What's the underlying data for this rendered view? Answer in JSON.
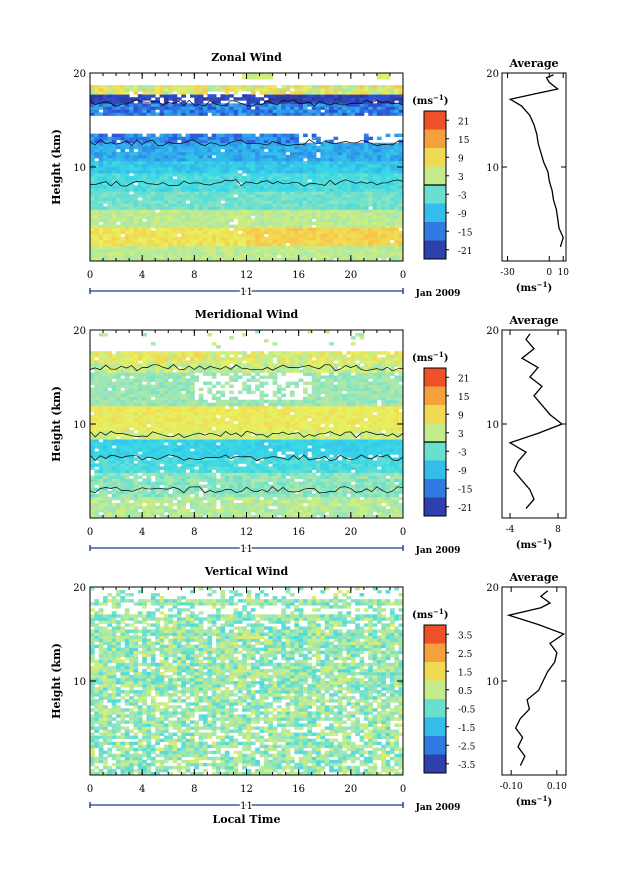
{
  "chart_data": [
    {
      "type": "heatmap",
      "title": "Zonal Wind",
      "ylabel": "Height (km)",
      "units_label": "(ms",
      "units_exp": "−1",
      "x_ticks": [
        "0",
        "4",
        "8",
        "12",
        "16",
        "20",
        "0"
      ],
      "y_ticks": [
        "20",
        "10"
      ],
      "ylim": [
        0,
        20
      ],
      "xlim": [
        0,
        24
      ],
      "day_label": "11",
      "date_label": "Jan 2009",
      "colorbar_ticks": [
        "21",
        "15",
        "9",
        "3",
        "-3",
        "-9",
        "-15",
        "-21"
      ],
      "colorbar_range": [
        -24,
        24
      ],
      "zero_contour": true,
      "profile": {
        "title": "Average",
        "x_ticks": [
          "-30",
          "0",
          "10"
        ],
        "xlim": [
          -34,
          12
        ],
        "xlabel_base": "(ms",
        "xlabel_exp": "−1",
        "y_ticks": [
          "20",
          "10"
        ],
        "points": [
          [
            8,
            1.5
          ],
          [
            10,
            2.5
          ],
          [
            7,
            3.5
          ],
          [
            6,
            4.5
          ],
          [
            5,
            5.5
          ],
          [
            3,
            6.5
          ],
          [
            2,
            7.5
          ],
          [
            0,
            8.5
          ],
          [
            -1,
            9.5
          ],
          [
            -4,
            10.5
          ],
          [
            -6,
            11.5
          ],
          [
            -8,
            12.5
          ],
          [
            -9,
            13.5
          ],
          [
            -11,
            14.5
          ],
          [
            -14,
            15.5
          ],
          [
            -20,
            16.5
          ],
          [
            -28,
            17.2
          ],
          [
            -10,
            17.8
          ],
          [
            6,
            18.3
          ],
          [
            0,
            19
          ],
          [
            -2,
            19.5
          ],
          [
            3,
            19.8
          ]
        ]
      }
    },
    {
      "type": "heatmap",
      "title": "Meridional Wind",
      "ylabel": "Height (km)",
      "units_label": "(ms",
      "units_exp": "−1",
      "x_ticks": [
        "0",
        "4",
        "8",
        "12",
        "16",
        "20",
        "0"
      ],
      "y_ticks": [
        "20",
        "10"
      ],
      "ylim": [
        0,
        20
      ],
      "xlim": [
        0,
        24
      ],
      "day_label": "11",
      "date_label": "Jan 2009",
      "colorbar_ticks": [
        "21",
        "15",
        "9",
        "3",
        "-3",
        "-9",
        "-15",
        "-21"
      ],
      "colorbar_range": [
        -24,
        24
      ],
      "zero_contour": true,
      "profile": {
        "title": "Average",
        "x_ticks": [
          "-4",
          "8"
        ],
        "xlim": [
          -6,
          10
        ],
        "xlabel_base": "(ms",
        "xlabel_exp": "−1",
        "y_ticks": [
          "20",
          "10"
        ],
        "points": [
          [
            0,
            1
          ],
          [
            2,
            2
          ],
          [
            1,
            3
          ],
          [
            -1,
            4
          ],
          [
            -3,
            5
          ],
          [
            -2,
            6
          ],
          [
            0,
            7
          ],
          [
            -4,
            8
          ],
          [
            3,
            9
          ],
          [
            9,
            10
          ],
          [
            6,
            11
          ],
          [
            4,
            12
          ],
          [
            2,
            13
          ],
          [
            4,
            14
          ],
          [
            1,
            15
          ],
          [
            3,
            16
          ],
          [
            -1,
            17
          ],
          [
            2,
            18
          ],
          [
            0,
            19
          ],
          [
            1,
            19.6
          ]
        ]
      }
    },
    {
      "type": "heatmap",
      "title": "Vertical Wind",
      "ylabel": "Height (km)",
      "xlabel": "Local Time",
      "units_label": "(ms",
      "units_exp": "−1",
      "x_ticks": [
        "0",
        "4",
        "8",
        "12",
        "16",
        "20",
        "0"
      ],
      "y_ticks": [
        "20",
        "10"
      ],
      "ylim": [
        0,
        20
      ],
      "xlim": [
        0,
        24
      ],
      "day_label": "11",
      "date_label": "Jan 2009",
      "colorbar_ticks": [
        "3.5",
        "2.5",
        "1.5",
        "0.5",
        "-0.5",
        "-1.5",
        "-2.5",
        "-3.5"
      ],
      "colorbar_range": [
        -4,
        4
      ],
      "zero_contour": false,
      "profile": {
        "title": "Average",
        "x_ticks": [
          "-0.10",
          "0.10"
        ],
        "xlim": [
          -0.14,
          0.14
        ],
        "xlabel_base": "(ms",
        "xlabel_exp": "−1",
        "y_ticks": [
          "20",
          "10"
        ],
        "points": [
          [
            -0.06,
            1
          ],
          [
            -0.04,
            2
          ],
          [
            -0.07,
            3
          ],
          [
            -0.05,
            4
          ],
          [
            -0.08,
            5
          ],
          [
            -0.06,
            6
          ],
          [
            -0.02,
            7
          ],
          [
            -0.03,
            8
          ],
          [
            0.02,
            9
          ],
          [
            0.04,
            10
          ],
          [
            0.06,
            11
          ],
          [
            0.09,
            12
          ],
          [
            0.1,
            13
          ],
          [
            0.07,
            14
          ],
          [
            0.13,
            15
          ],
          [
            0.02,
            16
          ],
          [
            -0.11,
            17
          ],
          [
            0.03,
            17.8
          ],
          [
            0.07,
            18.3
          ],
          [
            0.03,
            19
          ],
          [
            0.06,
            19.6
          ]
        ]
      }
    }
  ]
}
